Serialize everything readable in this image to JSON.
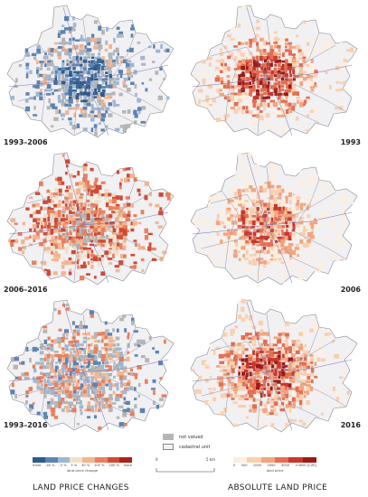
{
  "panels": [
    {
      "id": "p1",
      "label": "1993–2006",
      "side": "left",
      "row": 0,
      "theme": "change-1"
    },
    {
      "id": "p2",
      "label": "1993",
      "side": "right",
      "row": 0,
      "theme": "abs-1993"
    },
    {
      "id": "p3",
      "label": "2006–2016",
      "side": "left",
      "row": 1,
      "theme": "change-2"
    },
    {
      "id": "p4",
      "label": "2006",
      "side": "right",
      "row": 1,
      "theme": "abs-2006"
    },
    {
      "id": "p5",
      "label": "1993–2016",
      "side": "left",
      "row": 2,
      "theme": "change-3"
    },
    {
      "id": "p6",
      "label": "2016",
      "side": "right",
      "row": 2,
      "theme": "abs-2016"
    }
  ],
  "legend_change": {
    "ticks": [
      "more",
      "-40 %",
      "-5 %",
      "5 %",
      "30 %",
      "100 %",
      "200 %",
      "more"
    ],
    "caption": "land price change",
    "colors": [
      "#2f5a8a",
      "#5b84b3",
      "#9fb7d3",
      "#f1e0c8",
      "#f4b48e",
      "#e8805d",
      "#cf4a35",
      "#a8231c"
    ]
  },
  "legend_abs": {
    "ticks": [
      "0",
      "500",
      "1000",
      "2000",
      "3000",
      ">3000 [CZK]"
    ],
    "caption": "land price",
    "colors": [
      "#fdeede",
      "#f9cfae",
      "#f3a57f",
      "#e46e51",
      "#c8372b",
      "#9b1a17"
    ]
  },
  "key": {
    "not_valued": "not valued",
    "cadastral_unit": "cadastral unit",
    "not_valued_color": "#b5b5b5",
    "cadastral_fill": "#f1f0f3"
  },
  "scale": {
    "zero": "0",
    "distance": "5 km"
  },
  "titles": {
    "left": "LAND PRICE CHANGES",
    "right": "ABSOLUTE LAND PRICE"
  }
}
